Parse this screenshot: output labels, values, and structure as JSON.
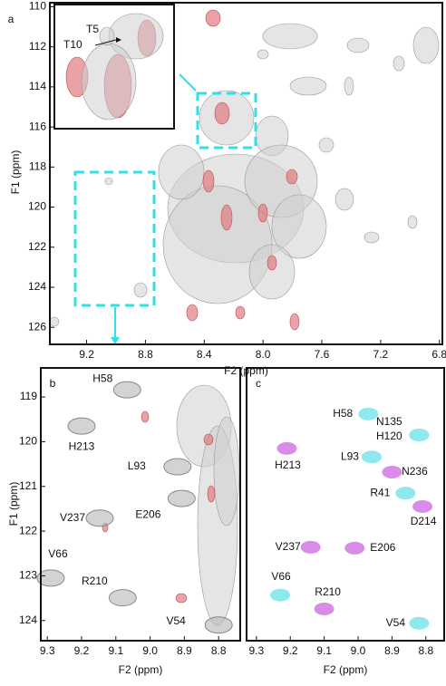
{
  "chart_data": [
    {
      "type": "contour",
      "panel_label": "a",
      "xlabel": "F2 (ppm)",
      "ylabel": "F1 (ppm)",
      "xlim": [
        9.45,
        6.78
      ],
      "ylim": [
        109.8,
        126.85
      ],
      "xticks": [
        9.2,
        8.8,
        8.4,
        {
          "value": 8,
          "label": "8.0"
        },
        7.6,
        7.2,
        6.8
      ],
      "yticks": [
        110,
        112,
        114,
        116,
        118,
        120,
        122,
        124,
        126
      ],
      "annotations": [
        "T5",
        "T10"
      ]
    },
    {
      "type": "scatter",
      "panel_label": "b",
      "xlabel": "F2 (ppm)",
      "ylabel": "F1 (ppm)",
      "xlim": [
        9.319,
        8.737
      ],
      "ylim": [
        118.35,
        124.45
      ],
      "xticks": [
        9.3,
        9.2,
        9.1,
        {
          "value": 9,
          "label": "9.0"
        },
        8.9,
        8.8
      ],
      "yticks": [
        119,
        120,
        121,
        122,
        123,
        124
      ],
      "series": [
        {
          "color": "#b5b5b5",
          "x": [
            9.067,
            9.2,
            8.92,
            9.147,
            8.908,
            9.29,
            9.08,
            8.8
          ],
          "values": [
            118.84,
            119.65,
            120.56,
            121.71,
            121.27,
            123.05,
            123.49,
            124.1
          ],
          "labels": [
            "H58",
            "H213",
            "L93",
            "V237",
            "E206",
            "V66",
            "R210",
            "V54"
          ]
        }
      ]
    },
    {
      "type": "scatter",
      "panel_label": "c",
      "xlabel": "F2 (ppm)",
      "xlim": [
        9.329,
        8.746
      ],
      "ylim": [
        118.35,
        124.45
      ],
      "xticks": [
        9.3,
        9.2,
        9.1,
        {
          "value": 9,
          "label": "9.0"
        },
        8.9,
        8.8
      ],
      "series": [
        {
          "color": "#8ee8ee",
          "x": [
            8.97,
            8.82,
            8.82,
            8.96,
            8.86,
            9.23,
            8.82
          ],
          "values": [
            119.38,
            119.85,
            119.85,
            120.34,
            121.15,
            123.43,
            124.06
          ],
          "labels": [
            "H58",
            "N135",
            "H120",
            "L93",
            "R41",
            "V66",
            "V54"
          ]
        },
        {
          "color": "#d98be8",
          "x": [
            9.21,
            8.9,
            8.81,
            9.14,
            9.01,
            9.1
          ],
          "values": [
            120.15,
            120.68,
            121.45,
            122.36,
            122.38,
            123.74
          ],
          "labels": [
            "H213",
            "N236",
            "D214",
            "V237",
            "E206",
            "R210"
          ]
        }
      ]
    }
  ]
}
